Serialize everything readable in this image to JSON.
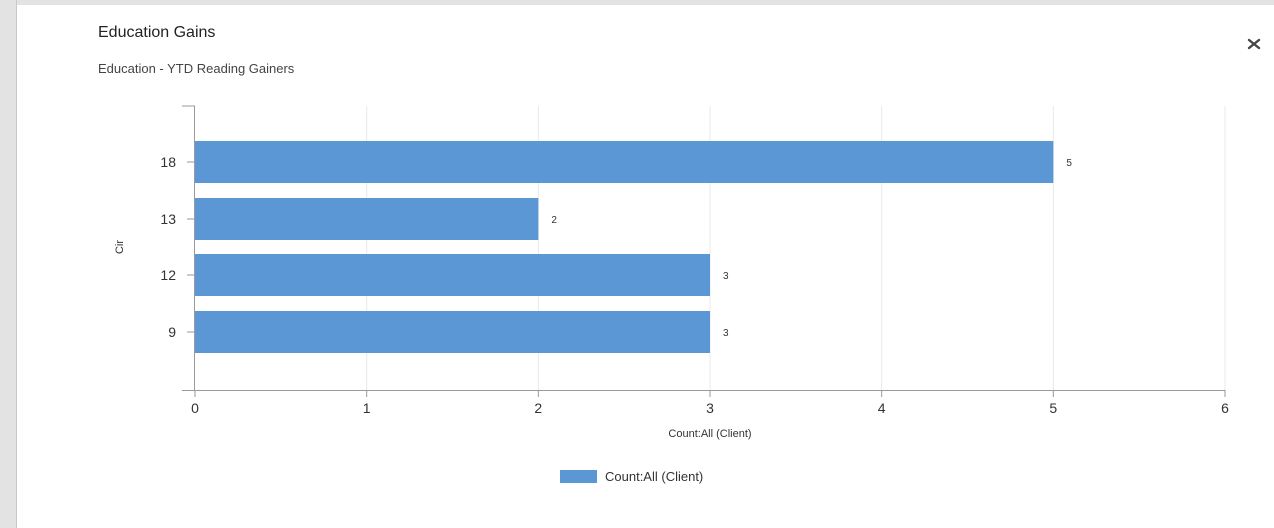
{
  "header": {
    "title": "Education Gains",
    "subtitle": "Education - YTD Reading Gainers",
    "close_icon": "close-icon"
  },
  "colors": {
    "bar": "#5b97d5",
    "grid": "#e8e8e8",
    "axis": "#9a9a9a"
  },
  "chart_data": {
    "type": "bar",
    "orientation": "horizontal",
    "categories": [
      "18",
      "13",
      "12",
      "9"
    ],
    "series": [
      {
        "name": "Count:All (Client)",
        "values": [
          5,
          2,
          3,
          3
        ]
      }
    ],
    "xlabel": "Count:All (Client)",
    "ylabel": "Cir",
    "xlim": [
      0,
      6
    ],
    "xticks": [
      "0",
      "1",
      "2",
      "3",
      "4",
      "5",
      "6"
    ],
    "data_labels": [
      "5",
      "2",
      "3",
      "3"
    ],
    "grid": true,
    "legend_position": "bottom"
  }
}
